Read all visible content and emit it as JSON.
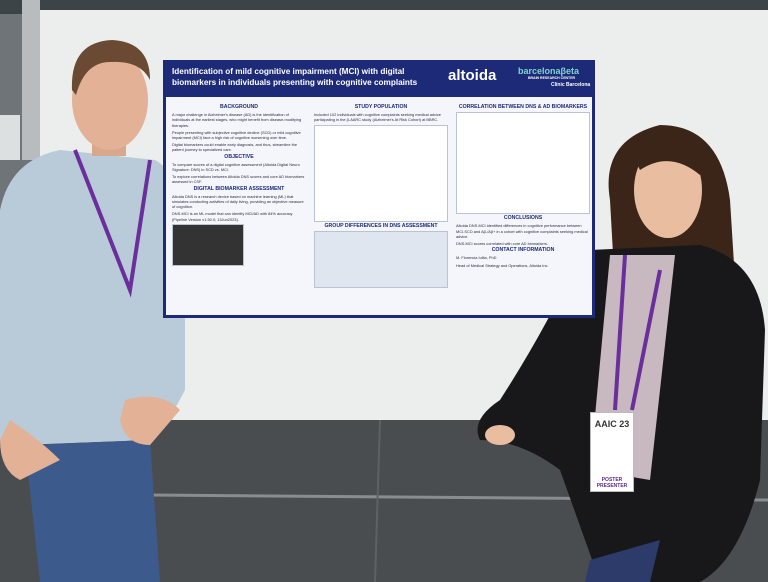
{
  "poster": {
    "title": "Identification of mild cognitive impairment (MCI) with digital biomarkers in individuals presenting with cognitive complaints",
    "logos": [
      "altoida",
      "barcelonaβeta",
      "BRAIN RESEARCH CENTER",
      "Clínic Barcelona"
    ],
    "sections": [
      {
        "heading": "BACKGROUND",
        "text": [
          "A major challenge in Alzheimer's disease (AD) is the identification of individuals at the earliest stages, who might benefit from disease-modifying therapies.",
          "People presenting with subjective cognitive decline (SCD) or mild cognitive impairment (MCI) face a high risk of cognitive worsening over time.",
          "Digital biomarkers could enable early diagnosis, and thus, streamline the patient journey to specialized care."
        ]
      },
      {
        "heading": "OBJECTIVE",
        "text": [
          "To compare scores of a digital cognitive assessment (Altoida Digital Neuro Signature: DNS) in SCD vs. MCI.",
          "To explore correlations between Altoida DNS scores and core AD biomarkers assessed in CSF."
        ]
      },
      {
        "heading": "DIGITAL BIOMARKER ASSESSMENT",
        "text": [
          "Altoida DNS is a research device based on machine learning (ML) that simulates conducting activities of daily living, providing an objective measure of cognition.",
          "DNS-MCI is an ML model that can identify MCI/AD with 84% accuracy (Pipeline Version v1.50.0; 13Jun2023)."
        ]
      },
      {
        "heading": "STUDY POPULATION",
        "text": [
          "Included 102 individuals with cognitive complaints seeking medical advice participating in the β-AARC study (Alzheimer's At Risk Cohort) at BBRC."
        ]
      },
      {
        "heading": "GROUP DIFFERENCES IN DNS ASSESSMENT"
      },
      {
        "heading": "CORRELATION BETWEEN DNS & AD BIOMARKERS"
      },
      {
        "heading": "CONCLUSIONS",
        "text": [
          "Altoida DNS-MCI identified differences in cognitive performance between MCI-SCD and Aβ-/Aβ+ in a cohort with cognitive complaints seeking medical advice.",
          "DNS-MCI scores correlated with core AD biomarkers."
        ]
      },
      {
        "heading": "CONTACT INFORMATION",
        "text": [
          "M. Florencia Iulita, PhD",
          "Head of Medical Strategy and Operations, Altoida Inc."
        ]
      }
    ]
  },
  "badge": {
    "event": "AAIC 23",
    "role": "POSTER PRESENTER"
  }
}
